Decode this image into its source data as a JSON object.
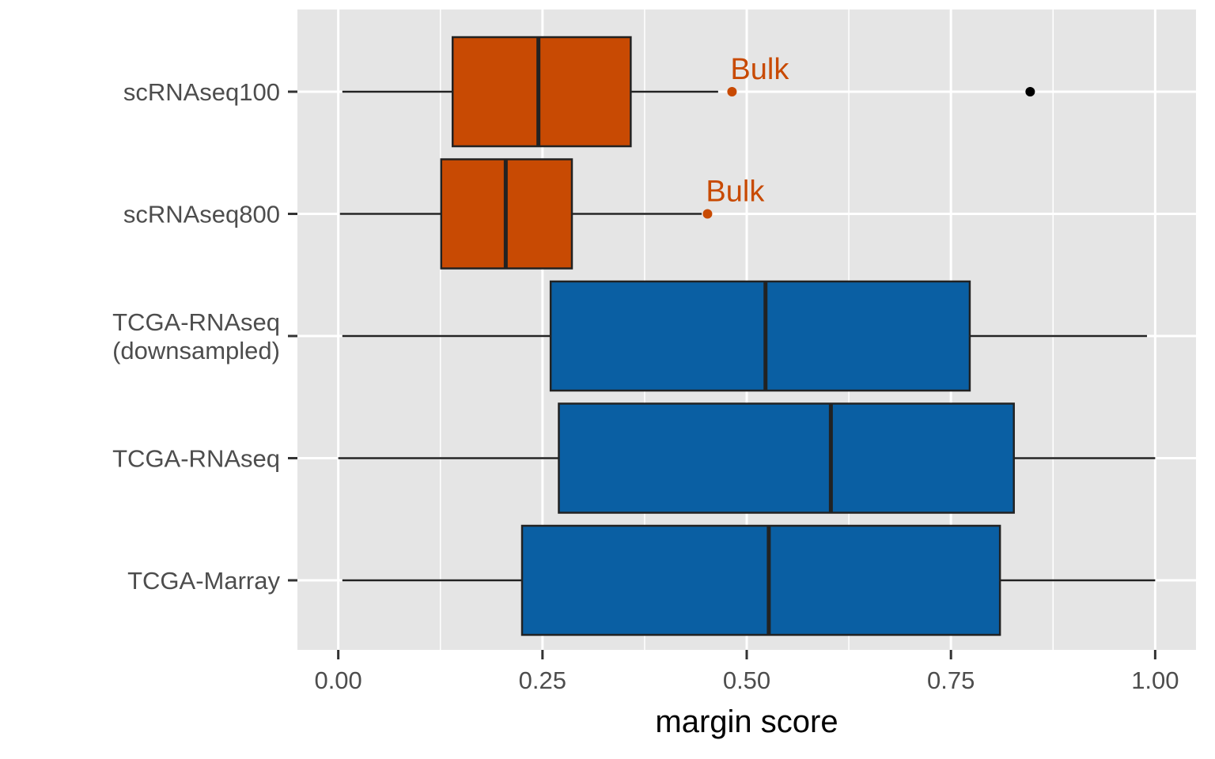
{
  "chart_data": {
    "type": "boxplot",
    "orientation": "horizontal",
    "xlabel": "margin score",
    "ylabel": "",
    "xlim": [
      -0.05,
      1.05
    ],
    "x_ticks": [
      0.0,
      0.25,
      0.5,
      0.75,
      1.0
    ],
    "x_tick_labels": [
      "0.00",
      "0.25",
      "0.50",
      "0.75",
      "1.00"
    ],
    "grid": true,
    "legend": "none",
    "colors": {
      "scRNAseq": "#c84a03",
      "TCGA": "#0a5fa3",
      "panel_background": "#e5e5e5",
      "outlier": "#000000"
    },
    "categories": [
      [
        "scRNAseq100"
      ],
      [
        "scRNAseq800"
      ],
      [
        "TCGA-RNAseq",
        "(downsampled)"
      ],
      [
        "TCGA-RNAseq"
      ],
      [
        "TCGA-Marray"
      ]
    ],
    "boxes": [
      {
        "group": "scRNAseq",
        "whisker_low": 0.005,
        "q1": 0.14,
        "median": 0.245,
        "q3": 0.358,
        "whisker_high": 0.465,
        "outliers": [
          0.847
        ]
      },
      {
        "group": "scRNAseq",
        "whisker_low": 0.002,
        "q1": 0.126,
        "median": 0.205,
        "q3": 0.286,
        "whisker_high": 0.445,
        "outliers": []
      },
      {
        "group": "TCGA",
        "whisker_low": 0.005,
        "q1": 0.26,
        "median": 0.523,
        "q3": 0.773,
        "whisker_high": 0.99,
        "outliers": []
      },
      {
        "group": "TCGA",
        "whisker_low": 0.0,
        "q1": 0.27,
        "median": 0.603,
        "q3": 0.827,
        "whisker_high": 1.0,
        "outliers": []
      },
      {
        "group": "TCGA",
        "whisker_low": 0.005,
        "q1": 0.225,
        "median": 0.527,
        "q3": 0.81,
        "whisker_high": 1.0,
        "outliers": []
      }
    ],
    "annotations": [
      {
        "category_index": 0,
        "x": 0.482,
        "label": "Bulk",
        "color": "#c84a03"
      },
      {
        "category_index": 1,
        "x": 0.452,
        "label": "Bulk",
        "color": "#c84a03"
      }
    ]
  }
}
